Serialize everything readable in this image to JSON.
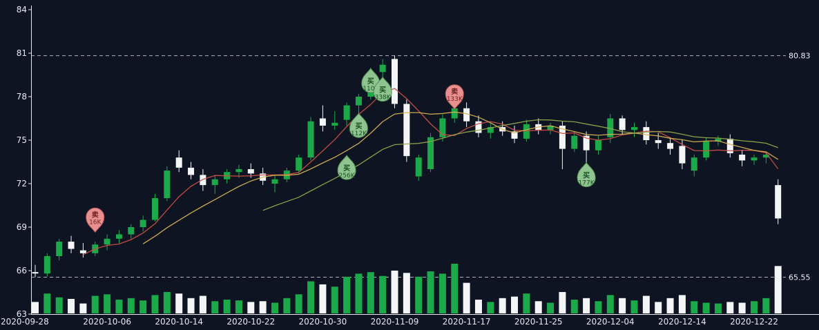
{
  "colors": {
    "background": "#0e1422",
    "axis": "#e7eaf0",
    "text": "#e7eaf0",
    "dash_line": "#aeb4bf",
    "dash_label": "#f0f2f6",
    "up": "#1ca94a",
    "down": "#f4f5f7",
    "buy_fill": "#8fc491",
    "buy_stroke": "#4f8f51",
    "buy_text": "#17501e",
    "sell_fill": "#e88f8f",
    "sell_stroke": "#bb5b5b",
    "sell_text": "#6e1f1f"
  },
  "chart_data": {
    "type": "candlestick",
    "title": "",
    "y_ticks": [
      84,
      81,
      78,
      75,
      72,
      69,
      66,
      63
    ],
    "x_ticks": [
      {
        "index": 0,
        "label": "2020-09-28"
      },
      {
        "index": 6,
        "label": "2020-10-06"
      },
      {
        "index": 12,
        "label": "2020-10-14"
      },
      {
        "index": 18,
        "label": "2020-10-22"
      },
      {
        "index": 24,
        "label": "2020-10-30"
      },
      {
        "index": 30,
        "label": "2020-11-09"
      },
      {
        "index": 36,
        "label": "2020-11-17"
      },
      {
        "index": 42,
        "label": "2020-11-25"
      },
      {
        "index": 48,
        "label": "2020-12-04"
      },
      {
        "index": 54,
        "label": "2020-12-14"
      },
      {
        "index": 60,
        "label": "2020-12-22"
      }
    ],
    "hlines": [
      {
        "value": 80.83,
        "label": "80.83"
      },
      {
        "value": 65.55,
        "label": "65.55"
      }
    ],
    "ma_lines": [
      {
        "period": 5,
        "color": "#cc4f47"
      },
      {
        "period": 10,
        "color": "#d6b254"
      },
      {
        "period": 20,
        "color": "#93a84c"
      }
    ],
    "dates": [
      "2020-09-28",
      "2020-09-29",
      "2020-09-30",
      "2020-10-01",
      "2020-10-02",
      "2020-10-05",
      "2020-10-06",
      "2020-10-07",
      "2020-10-08",
      "2020-10-09",
      "2020-10-12",
      "2020-10-13",
      "2020-10-14",
      "2020-10-15",
      "2020-10-16",
      "2020-10-19",
      "2020-10-20",
      "2020-10-21",
      "2020-10-22",
      "2020-10-23",
      "2020-10-26",
      "2020-10-27",
      "2020-10-28",
      "2020-10-29",
      "2020-10-30",
      "2020-11-02",
      "2020-11-03",
      "2020-11-04",
      "2020-11-05",
      "2020-11-06",
      "2020-11-09",
      "2020-11-10",
      "2020-11-11",
      "2020-11-12",
      "2020-11-13",
      "2020-11-16",
      "2020-11-17",
      "2020-11-18",
      "2020-11-19",
      "2020-11-20",
      "2020-11-23",
      "2020-11-24",
      "2020-11-25",
      "2020-11-27",
      "2020-11-30",
      "2020-12-01",
      "2020-12-02",
      "2020-12-03",
      "2020-12-04",
      "2020-12-07",
      "2020-12-08",
      "2020-12-09",
      "2020-12-10",
      "2020-12-11",
      "2020-12-14",
      "2020-12-15",
      "2020-12-16",
      "2020-12-17",
      "2020-12-18",
      "2020-12-21",
      "2020-12-22",
      "2020-12-23",
      "2020-12-24"
    ],
    "open": [
      65.9,
      65.8,
      67.0,
      68.0,
      67.4,
      67.2,
      67.8,
      68.2,
      68.5,
      69.0,
      69.5,
      71.0,
      73.8,
      73.1,
      72.6,
      71.9,
      72.3,
      72.8,
      73.0,
      72.7,
      72.0,
      72.3,
      72.9,
      73.8,
      76.5,
      76.0,
      76.4,
      77.4,
      78.0,
      79.7,
      80.6,
      77.5,
      72.5,
      73.0,
      75.2,
      76.5,
      77.2,
      76.3,
      75.5,
      75.9,
      75.6,
      75.1,
      76.1,
      75.7,
      76.0,
      74.4,
      75.3,
      74.3,
      75.2,
      76.5,
      75.7,
      75.9,
      75.0,
      74.8,
      74.6,
      72.9,
      73.8,
      74.9,
      75.1,
      74.0,
      73.6,
      73.8,
      71.9
    ],
    "high": [
      66.4,
      67.2,
      68.2,
      68.4,
      67.9,
      68.0,
      68.5,
      68.8,
      69.2,
      69.8,
      71.3,
      73.2,
      74.3,
      73.5,
      73.0,
      72.6,
      73.0,
      73.3,
      73.4,
      73.1,
      72.6,
      73.1,
      74.0,
      76.6,
      77.4,
      77.0,
      77.6,
      78.2,
      80.0,
      80.6,
      80.83,
      77.8,
      74.0,
      75.5,
      76.8,
      77.5,
      77.6,
      76.7,
      76.2,
      76.3,
      76.0,
      76.4,
      76.5,
      76.2,
      76.3,
      75.6,
      75.6,
      75.3,
      76.8,
      76.7,
      76.2,
      76.3,
      75.5,
      75.2,
      75.0,
      74.0,
      75.2,
      75.3,
      75.4,
      74.3,
      74.0,
      74.2,
      72.3
    ],
    "low": [
      65.55,
      65.6,
      66.7,
      67.2,
      66.9,
      67.0,
      67.4,
      67.9,
      68.2,
      68.7,
      69.4,
      70.8,
      72.8,
      72.3,
      71.5,
      71.3,
      72.0,
      72.4,
      72.4,
      71.9,
      71.4,
      72.1,
      72.7,
      73.6,
      75.6,
      75.7,
      76.0,
      76.1,
      77.8,
      79.0,
      77.2,
      73.5,
      72.2,
      72.8,
      74.9,
      76.2,
      75.9,
      75.2,
      75.1,
      75.3,
      74.8,
      74.9,
      75.4,
      75.4,
      73.0,
      74.2,
      73.2,
      74.0,
      74.8,
      75.4,
      75.2,
      74.7,
      74.4,
      74.0,
      73.0,
      72.5,
      73.6,
      74.6,
      73.8,
      73.2,
      73.3,
      73.4,
      69.2
    ],
    "close": [
      65.8,
      67.0,
      68.0,
      67.5,
      67.2,
      67.8,
      68.2,
      68.5,
      69.0,
      69.5,
      71.0,
      72.9,
      73.1,
      72.6,
      71.9,
      72.3,
      72.8,
      73.0,
      72.7,
      72.2,
      72.3,
      72.9,
      73.8,
      76.3,
      76.0,
      76.2,
      77.4,
      78.0,
      79.7,
      80.2,
      77.5,
      73.9,
      73.8,
      75.2,
      76.5,
      77.2,
      76.3,
      75.5,
      75.9,
      75.6,
      75.1,
      76.1,
      75.7,
      76.0,
      74.4,
      75.3,
      74.3,
      75.0,
      76.5,
      75.7,
      75.9,
      75.0,
      74.8,
      74.4,
      73.4,
      73.8,
      74.9,
      75.1,
      74.1,
      73.6,
      73.8,
      74.0,
      69.6
    ],
    "volume_k": [
      150,
      260,
      210,
      190,
      130,
      230,
      250,
      180,
      200,
      170,
      240,
      280,
      260,
      200,
      230,
      160,
      180,
      170,
      150,
      160,
      140,
      200,
      250,
      420,
      380,
      350,
      480,
      520,
      540,
      490,
      560,
      530,
      480,
      550,
      520,
      650,
      400,
      180,
      150,
      200,
      220,
      260,
      160,
      140,
      280,
      180,
      200,
      160,
      240,
      200,
      170,
      230,
      150,
      200,
      240,
      160,
      140,
      130,
      150,
      140,
      160,
      200,
      620
    ],
    "markers": [
      {
        "index": 5,
        "type": "sell",
        "sign": "卖",
        "label": "16K",
        "price": 69.7
      },
      {
        "index": 26,
        "type": "buy",
        "sign": "买",
        "label": "256K",
        "price": 72.9
      },
      {
        "index": 27,
        "type": "buy",
        "sign": "买",
        "label": "112K",
        "price": 75.8
      },
      {
        "index": 28,
        "type": "buy",
        "sign": "买",
        "label": "110K",
        "price": 78.9
      },
      {
        "index": 29,
        "type": "buy",
        "sign": "买",
        "label": "338K",
        "price": 78.3
      },
      {
        "index": 35,
        "type": "sell",
        "sign": "卖",
        "label": "133K",
        "price": 78.2
      },
      {
        "index": 46,
        "type": "buy",
        "sign": "买",
        "label": "177K",
        "price": 72.4
      }
    ]
  }
}
